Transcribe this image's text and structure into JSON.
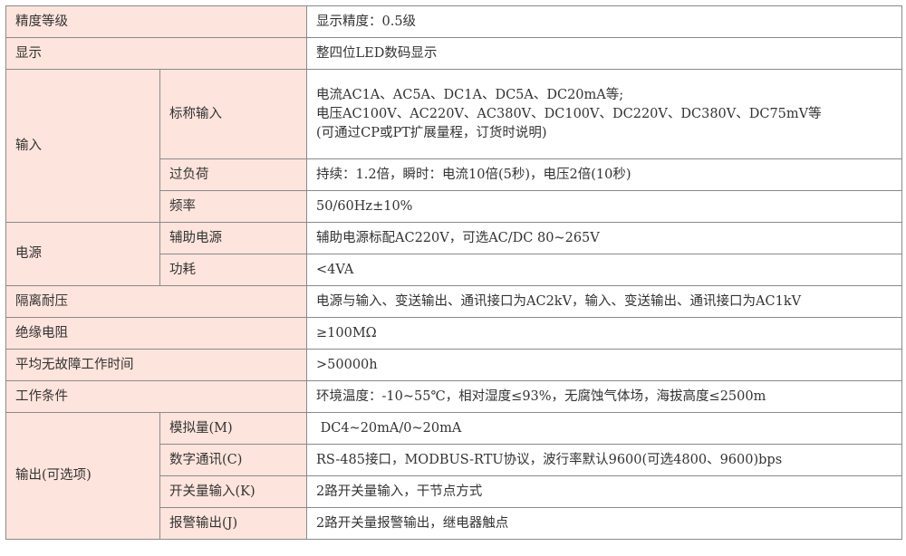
{
  "rows": {
    "accuracy": {
      "label": "精度等级",
      "value": "显示精度：0.5级"
    },
    "display": {
      "label": "显示",
      "value": "整四位LED数码显示"
    },
    "input": {
      "label": "输入",
      "nominal": {
        "label": "标称输入",
        "lines": [
          "电流AC1A、AC5A、DC1A、DC5A、DC20mA等;",
          "电压AC100V、AC220V、AC380V、DC100V、DC220V、DC380V、DC75mV等",
          "(可通过CP或PT扩展量程，订货时说明)"
        ]
      },
      "overload": {
        "label": "过负荷",
        "value": "持续：1.2倍，瞬时：电流10倍(5秒)，电压2倍(10秒)"
      },
      "frequency": {
        "label": "频率",
        "value": "50/60Hz±10%"
      }
    },
    "power": {
      "label": "电源",
      "aux": {
        "label": "辅助电源",
        "value": "辅助电源标配AC220V，可选AC/DC 80~265V"
      },
      "consumption": {
        "label": "功耗",
        "value": "<4VA"
      }
    },
    "isolation": {
      "label": "隔离耐压",
      "value": "电源与输入、变送输出、通讯接口为AC2kV，输入、变送输出、通讯接口为AC1kV"
    },
    "insulation": {
      "label": "绝缘电阻",
      "value": "≥100MΩ"
    },
    "mtbf": {
      "label": "平均无故障工作时间",
      "value": ">50000h"
    },
    "conditions": {
      "label": "工作条件",
      "value": "环境温度：-10~55℃，相对湿度≤93%，无腐蚀气体场，海拔高度≤2500m"
    },
    "output": {
      "label": "输出(可选项)",
      "analog": {
        "label": "模拟量(M)",
        "value": " DC4~20mA/0~20mA"
      },
      "comm": {
        "label": "数字通讯(C)",
        "value": "RS-485接口，MODBUS-RTU协议，波行率默认9600(可选4800、9600)bps"
      },
      "switch_in": {
        "label": "开关量输入(K)",
        "value": "2路开关量输入，干节点方式"
      },
      "alarm": {
        "label": "报警输出(J)",
        "value": "2路开关量报警输出，继电器触点"
      }
    }
  },
  "colors": {
    "header_bg": "#fde4dc",
    "border": "#8a8a8a"
  }
}
